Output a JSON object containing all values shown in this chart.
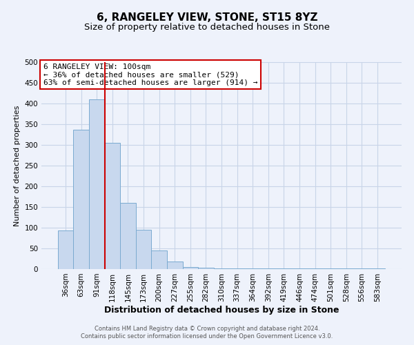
{
  "title": "6, RANGELEY VIEW, STONE, ST15 8YZ",
  "subtitle": "Size of property relative to detached houses in Stone",
  "xlabel": "Distribution of detached houses by size in Stone",
  "ylabel": "Number of detached properties",
  "bar_labels": [
    "36sqm",
    "63sqm",
    "91sqm",
    "118sqm",
    "145sqm",
    "173sqm",
    "200sqm",
    "227sqm",
    "255sqm",
    "282sqm",
    "310sqm",
    "337sqm",
    "364sqm",
    "392sqm",
    "419sqm",
    "446sqm",
    "474sqm",
    "501sqm",
    "528sqm",
    "556sqm",
    "583sqm"
  ],
  "bar_values": [
    93,
    336,
    410,
    305,
    160,
    95,
    45,
    18,
    5,
    4,
    2,
    1,
    1,
    1,
    1,
    1,
    1,
    1,
    1,
    2,
    2
  ],
  "bar_color": "#c8d8ee",
  "bar_edge_color": "#7aaad0",
  "grid_color": "#c8d4e8",
  "background_color": "#eef2fb",
  "plot_bg_color": "#eef2fb",
  "vline_color": "#cc0000",
  "vline_x": 2.5,
  "annotation_title": "6 RANGELEY VIEW: 100sqm",
  "annotation_line1": "← 36% of detached houses are smaller (529)",
  "annotation_line2": "63% of semi-detached houses are larger (914) →",
  "annotation_box_facecolor": "#ffffff",
  "annotation_box_edgecolor": "#cc0000",
  "footer1": "Contains HM Land Registry data © Crown copyright and database right 2024.",
  "footer2": "Contains public sector information licensed under the Open Government Licence v3.0.",
  "ylim": [
    0,
    500
  ],
  "yticks": [
    0,
    50,
    100,
    150,
    200,
    250,
    300,
    350,
    400,
    450,
    500
  ],
  "title_fontsize": 11,
  "subtitle_fontsize": 9.5,
  "xlabel_fontsize": 9,
  "ylabel_fontsize": 8,
  "tick_fontsize": 7.5,
  "footer_fontsize": 6,
  "ann_fontsize": 8
}
